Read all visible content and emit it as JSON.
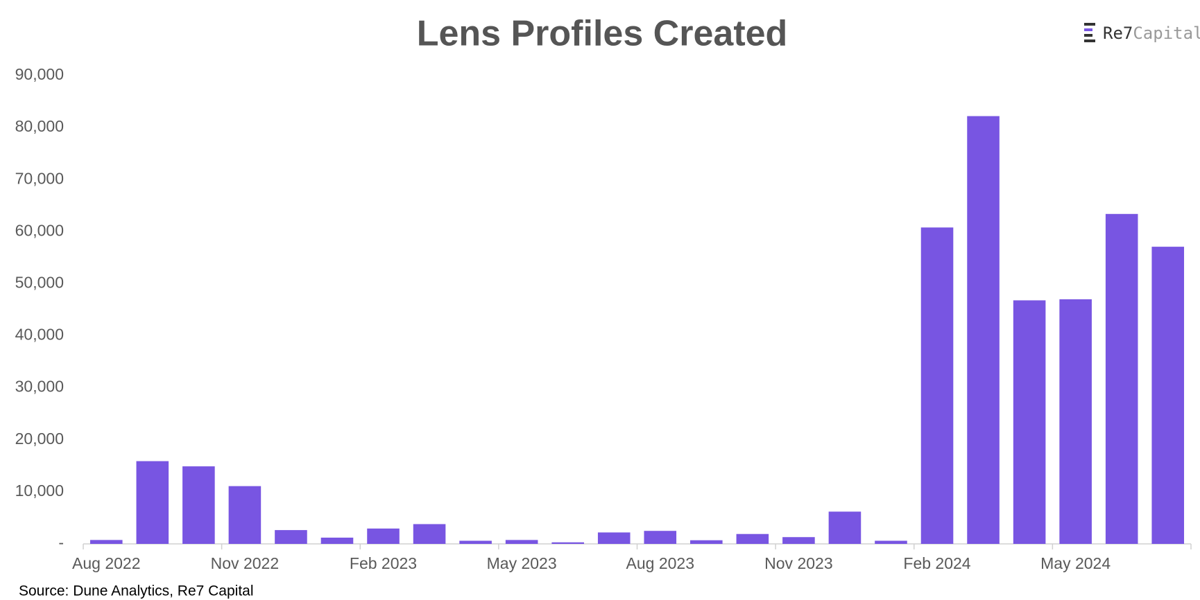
{
  "chart_data": {
    "type": "bar",
    "title": "Lens Profiles Created",
    "brand_main": "Re7",
    "brand_sub": "Capital",
    "source": "Source: Dune Analytics, Re7 Capital",
    "categories": [
      "Aug 2022",
      null,
      null,
      "Nov 2022",
      null,
      null,
      "Feb 2023",
      null,
      null,
      "May 2023",
      null,
      null,
      "Aug 2023",
      null,
      null,
      "Nov 2023",
      null,
      null,
      "Feb 2024",
      null,
      null,
      "May 2024",
      null,
      null
    ],
    "values": [
      750,
      15900,
      14900,
      11100,
      2650,
      1200,
      2950,
      3800,
      600,
      750,
      300,
      2200,
      2500,
      700,
      1900,
      1300,
      6200,
      600,
      60800,
      82200,
      46800,
      47000,
      63400,
      57100
    ],
    "color": "#7855e2",
    "ylim": [
      0,
      90000
    ],
    "yticks": [
      {
        "value": 0,
        "label": "-"
      },
      {
        "value": 10000,
        "label": "10,000"
      },
      {
        "value": 20000,
        "label": "20,000"
      },
      {
        "value": 30000,
        "label": "30,000"
      },
      {
        "value": 40000,
        "label": "40,000"
      },
      {
        "value": 50000,
        "label": "50,000"
      },
      {
        "value": 60000,
        "label": "60,000"
      },
      {
        "value": 70000,
        "label": "70,000"
      },
      {
        "value": 80000,
        "label": "80,000"
      },
      {
        "value": 90000,
        "label": "90,000"
      }
    ],
    "grid": false
  }
}
